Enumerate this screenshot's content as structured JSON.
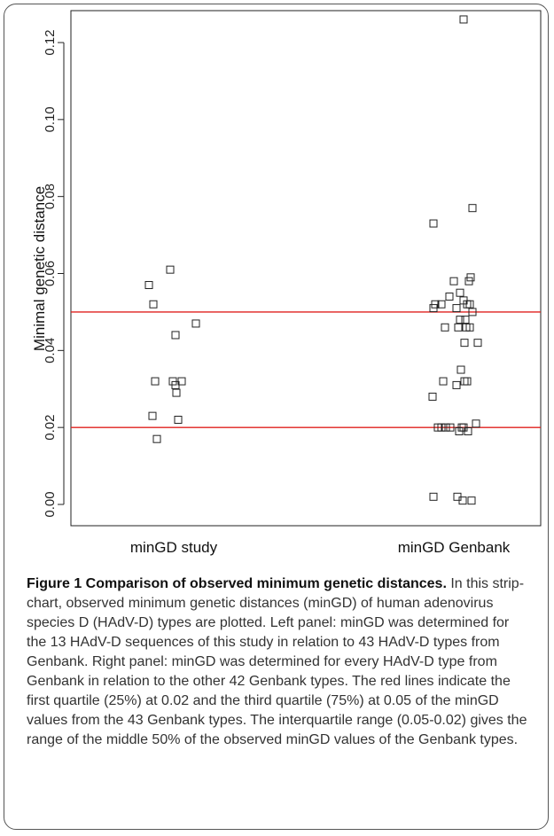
{
  "chart_data": {
    "type": "scatter",
    "subtype": "strip-chart",
    "ylabel": "Minimal genetic distance",
    "ylim": [
      -0.004,
      0.128
    ],
    "yticks": [
      0.0,
      0.02,
      0.04,
      0.06,
      0.08,
      0.1,
      0.12
    ],
    "ytick_labels": [
      "0.00",
      "0.02",
      "0.04",
      "0.06",
      "0.08",
      "0.10",
      "0.12"
    ],
    "categories": [
      "minGD study",
      "minGD Genbank"
    ],
    "marker": "open-square",
    "series": [
      {
        "category": "minGD study",
        "points": [
          {
            "jitter": -0.28,
            "y": 0.057
          },
          {
            "jitter": -0.23,
            "y": 0.052
          },
          {
            "jitter": -0.21,
            "y": 0.032
          },
          {
            "jitter": -0.24,
            "y": 0.023
          },
          {
            "jitter": -0.19,
            "y": 0.017
          },
          {
            "jitter": -0.04,
            "y": 0.061
          },
          {
            "jitter": 0.02,
            "y": 0.044
          },
          {
            "jitter": -0.01,
            "y": 0.032
          },
          {
            "jitter": 0.02,
            "y": 0.031
          },
          {
            "jitter": 0.03,
            "y": 0.029
          },
          {
            "jitter": 0.09,
            "y": 0.032
          },
          {
            "jitter": 0.05,
            "y": 0.022
          },
          {
            "jitter": 0.25,
            "y": 0.047
          }
        ]
      },
      {
        "category": "minGD Genbank",
        "points": [
          {
            "jitter": 0.11,
            "y": 0.126
          },
          {
            "jitter": 0.21,
            "y": 0.077
          },
          {
            "jitter": -0.23,
            "y": 0.073
          },
          {
            "jitter": 0.19,
            "y": 0.059
          },
          {
            "jitter": 0.17,
            "y": 0.058
          },
          {
            "jitter": 0.0,
            "y": 0.058
          },
          {
            "jitter": -0.05,
            "y": 0.054
          },
          {
            "jitter": 0.07,
            "y": 0.055
          },
          {
            "jitter": -0.14,
            "y": 0.052
          },
          {
            "jitter": -0.21,
            "y": 0.052
          },
          {
            "jitter": -0.23,
            "y": 0.051
          },
          {
            "jitter": 0.03,
            "y": 0.051
          },
          {
            "jitter": 0.15,
            "y": 0.052
          },
          {
            "jitter": 0.18,
            "y": 0.052
          },
          {
            "jitter": 0.11,
            "y": 0.053
          },
          {
            "jitter": 0.21,
            "y": 0.05
          },
          {
            "jitter": 0.07,
            "y": 0.048
          },
          {
            "jitter": 0.13,
            "y": 0.048
          },
          {
            "jitter": -0.1,
            "y": 0.046
          },
          {
            "jitter": 0.05,
            "y": 0.046
          },
          {
            "jitter": 0.14,
            "y": 0.046
          },
          {
            "jitter": 0.18,
            "y": 0.046
          },
          {
            "jitter": 0.12,
            "y": 0.042
          },
          {
            "jitter": 0.27,
            "y": 0.042
          },
          {
            "jitter": 0.08,
            "y": 0.035
          },
          {
            "jitter": -0.12,
            "y": 0.032
          },
          {
            "jitter": 0.12,
            "y": 0.032
          },
          {
            "jitter": 0.15,
            "y": 0.032
          },
          {
            "jitter": 0.03,
            "y": 0.031
          },
          {
            "jitter": -0.24,
            "y": 0.028
          },
          {
            "jitter": 0.25,
            "y": 0.021
          },
          {
            "jitter": -0.18,
            "y": 0.02
          },
          {
            "jitter": -0.14,
            "y": 0.02
          },
          {
            "jitter": -0.09,
            "y": 0.02
          },
          {
            "jitter": -0.04,
            "y": 0.02
          },
          {
            "jitter": 0.09,
            "y": 0.02
          },
          {
            "jitter": 0.11,
            "y": 0.02
          },
          {
            "jitter": 0.06,
            "y": 0.019
          },
          {
            "jitter": 0.16,
            "y": 0.019
          },
          {
            "jitter": -0.23,
            "y": 0.002
          },
          {
            "jitter": 0.04,
            "y": 0.002
          },
          {
            "jitter": 0.1,
            "y": 0.001
          },
          {
            "jitter": 0.2,
            "y": 0.001
          }
        ]
      }
    ],
    "reference_lines": [
      {
        "y": 0.05,
        "color": "#e0201e"
      },
      {
        "y": 0.02,
        "color": "#e0201e"
      }
    ]
  },
  "caption": {
    "title": "Figure 1 Comparison of observed minimum genetic distances.",
    "text": "In this strip-chart, observed minimum genetic distances (minGD) of human adenovirus species D (HAdV-D) types are plotted. Left panel: minGD was determined for the 13 HAdV-D sequences of this study in relation to 43 HAdV-D types from Genbank. Right panel: minGD was determined for every HAdV-D type from Genbank in relation to the other 42 Genbank types. The red lines indicate the first quartile (25%) at 0.02 and the third quartile (75%) at 0.05 of the minGD values from the 43 Genbank types. The interquartile range (0.05-0.02) gives the range of the middle 50% of the observed minGD values of the Genbank types."
  }
}
